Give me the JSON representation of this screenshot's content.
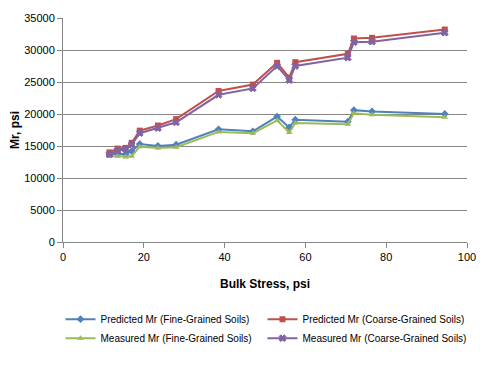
{
  "chart_data": {
    "type": "line",
    "x_label": "Bulk Stress, psi",
    "y_label": "Mr, psi",
    "x": [
      11.5,
      13.5,
      15.5,
      17,
      19,
      23.5,
      28,
      38.5,
      47,
      53,
      56,
      57.5,
      70.5,
      72,
      76.5,
      94.5
    ],
    "series": [
      {
        "name": "Predicted Mr (Fine-Grained Soils)",
        "color": "#4f81bd",
        "marker": "diamond",
        "values": [
          13700,
          13800,
          13700,
          14200,
          15300,
          15000,
          15200,
          17600,
          17300,
          19600,
          17900,
          19100,
          18800,
          20600,
          20400,
          20000
        ]
      },
      {
        "name": "Predicted Mr (Coarse-Grained Soils)",
        "color": "#c0504d",
        "marker": "square",
        "values": [
          14000,
          14600,
          14700,
          15500,
          17400,
          18200,
          19200,
          23600,
          24600,
          28000,
          25700,
          28100,
          29400,
          31800,
          31900,
          33200
        ]
      },
      {
        "name": "Measured Mr (Fine-Grained Soils)",
        "color": "#9bbb59",
        "marker": "triangle-up",
        "values": [
          13400,
          13400,
          13300,
          13400,
          14900,
          14700,
          14800,
          17200,
          17000,
          19000,
          17100,
          18600,
          18400,
          20100,
          19900,
          19500
        ]
      },
      {
        "name": "Measured Mr (Coarse-Grained Soils)",
        "color": "#8064a2",
        "marker": "x",
        "values": [
          13700,
          14300,
          14500,
          15200,
          17000,
          17800,
          18700,
          23000,
          24000,
          27500,
          25300,
          27500,
          28800,
          31200,
          31300,
          32700
        ]
      }
    ],
    "xlim": [
      0,
      100
    ],
    "xticks": [
      0,
      20,
      40,
      60,
      80,
      100
    ],
    "ylim": [
      0,
      35000
    ],
    "yticks": [
      0,
      5000,
      10000,
      15000,
      20000,
      25000,
      30000,
      35000
    ],
    "grid": true,
    "legend": "bottom"
  }
}
